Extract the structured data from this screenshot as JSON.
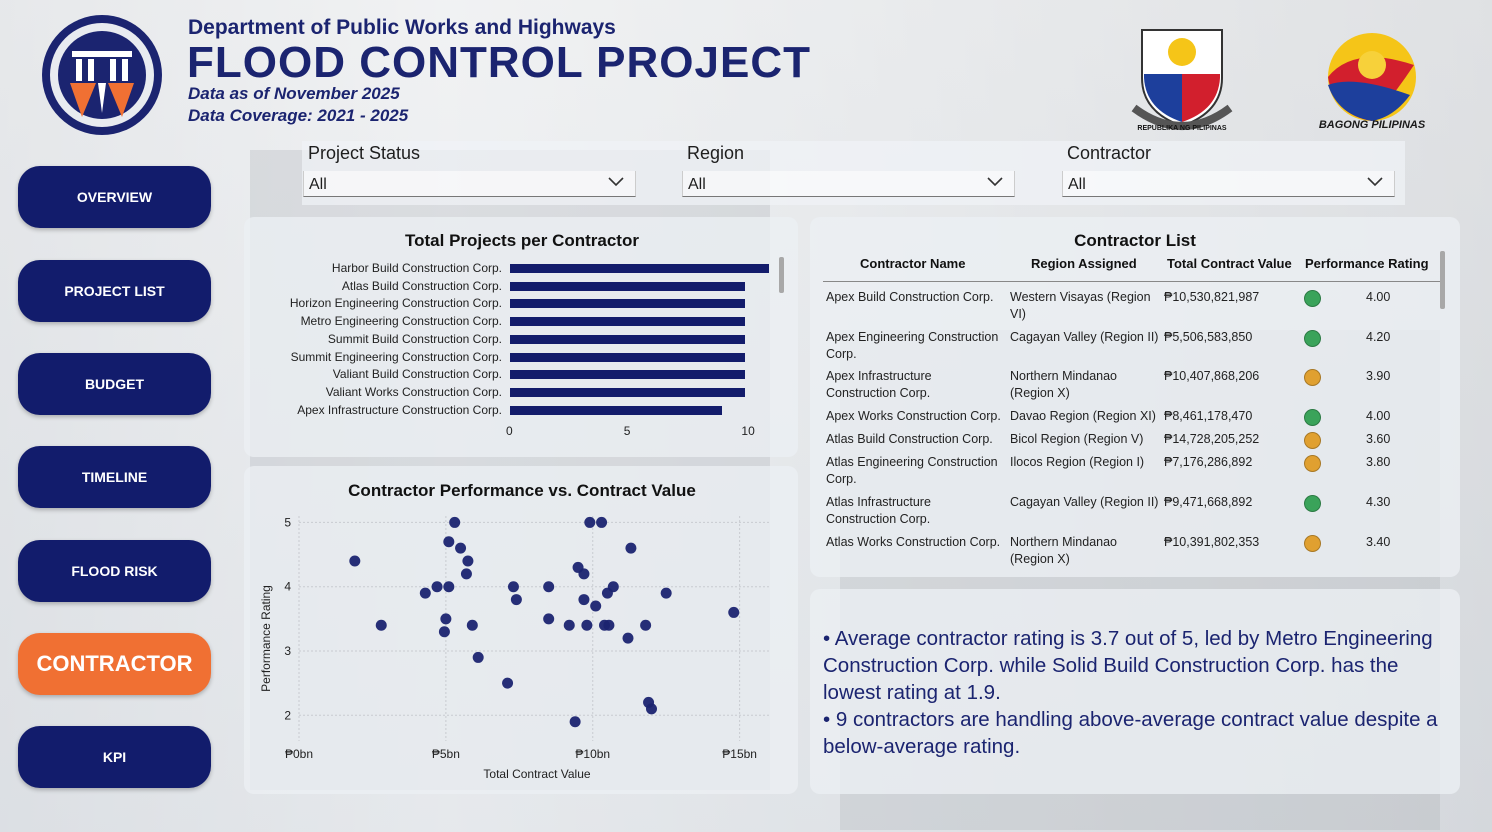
{
  "header": {
    "department": "Department of Public Works and Highways",
    "title": "FLOOD CONTROL PROJECT",
    "data_as_of": "Data as of November 2025",
    "coverage": "Data Coverage: 2021 - 2025",
    "seal_text": "REPUBLIKA NG PILIPINAS",
    "bagong_pilipinas": "BAGONG PILIPINAS"
  },
  "nav": {
    "items": [
      {
        "label": "OVERVIEW"
      },
      {
        "label": "PROJECT LIST"
      },
      {
        "label": "BUDGET"
      },
      {
        "label": "TIMELINE"
      },
      {
        "label": "FLOOD RISK"
      },
      {
        "label": "CONTRACTOR"
      },
      {
        "label": "KPI"
      }
    ],
    "active": "CONTRACTOR"
  },
  "filters": [
    {
      "label": "Project Status",
      "value": "All"
    },
    {
      "label": "Region",
      "value": "All"
    },
    {
      "label": "Contractor",
      "value": "All"
    }
  ],
  "colors": {
    "navy": "#121c6c",
    "accent": "#f07033",
    "rating_good": "#3aa35a",
    "rating_mid": "#e0a030"
  },
  "bar_chart": {
    "chart_data": {
      "type": "bar",
      "orientation": "horizontal",
      "title": "Total Projects per Contractor",
      "categories": [
        "Harbor Build Construction Corp.",
        "Atlas Build Construction Corp.",
        "Horizon Engineering Construction Corp.",
        "Metro Engineering Construction Corp.",
        "Summit Build Construction Corp.",
        "Summit Engineering Construction Corp.",
        "Valiant Build Construction Corp.",
        "Valiant Works Construction Corp.",
        "Apex Infrastructure Construction Corp."
      ],
      "values": [
        11,
        10,
        10,
        10,
        10,
        10,
        10,
        10,
        9
      ],
      "xlim": [
        0,
        11.3
      ],
      "x_ticks": [
        "0",
        "5",
        "10"
      ],
      "x_tick_values": [
        0,
        5,
        10
      ]
    }
  },
  "scatter_chart": {
    "chart_data": {
      "type": "scatter",
      "title": "Contractor Performance vs. Contract Value",
      "xlabel": "Total Contract Value",
      "ylabel": "Performance Rating",
      "xlim": [
        0,
        16
      ],
      "ylim": [
        1.6,
        5.1
      ],
      "x_ticks": [
        "₱0bn",
        "₱5bn",
        "₱10bn",
        "₱15bn"
      ],
      "x_tick_values": [
        0,
        5,
        10,
        15
      ],
      "y_ticks": [
        "2",
        "3",
        "4",
        "5"
      ],
      "y_tick_values": [
        2,
        3,
        4,
        5
      ],
      "grid": true,
      "points": [
        {
          "x": 1.9,
          "y": 4.4
        },
        {
          "x": 2.8,
          "y": 3.4
        },
        {
          "x": 4.3,
          "y": 3.9
        },
        {
          "x": 4.7,
          "y": 4.0
        },
        {
          "x": 5.0,
          "y": 3.5
        },
        {
          "x": 4.95,
          "y": 3.3
        },
        {
          "x": 5.1,
          "y": 4.0
        },
        {
          "x": 5.1,
          "y": 4.7
        },
        {
          "x": 5.3,
          "y": 5.0
        },
        {
          "x": 5.5,
          "y": 4.6
        },
        {
          "x": 5.75,
          "y": 4.4
        },
        {
          "x": 5.7,
          "y": 4.2
        },
        {
          "x": 5.9,
          "y": 3.4
        },
        {
          "x": 6.1,
          "y": 2.9
        },
        {
          "x": 7.1,
          "y": 2.5
        },
        {
          "x": 7.3,
          "y": 4.0
        },
        {
          "x": 7.4,
          "y": 3.8
        },
        {
          "x": 8.5,
          "y": 4.0
        },
        {
          "x": 8.5,
          "y": 3.5
        },
        {
          "x": 9.2,
          "y": 3.4
        },
        {
          "x": 9.4,
          "y": 1.9
        },
        {
          "x": 9.5,
          "y": 4.3
        },
        {
          "x": 9.7,
          "y": 4.2
        },
        {
          "x": 9.7,
          "y": 3.8
        },
        {
          "x": 9.8,
          "y": 3.4
        },
        {
          "x": 9.9,
          "y": 5.0
        },
        {
          "x": 10.1,
          "y": 3.7
        },
        {
          "x": 10.3,
          "y": 5.0
        },
        {
          "x": 10.4,
          "y": 3.4
        },
        {
          "x": 10.5,
          "y": 3.9
        },
        {
          "x": 10.55,
          "y": 3.4
        },
        {
          "x": 10.7,
          "y": 4.0
        },
        {
          "x": 11.2,
          "y": 3.2
        },
        {
          "x": 11.3,
          "y": 4.6
        },
        {
          "x": 11.8,
          "y": 3.4
        },
        {
          "x": 11.9,
          "y": 2.2
        },
        {
          "x": 12.0,
          "y": 2.1
        },
        {
          "x": 12.5,
          "y": 3.9
        },
        {
          "x": 14.8,
          "y": 3.6
        }
      ]
    }
  },
  "table": {
    "title": "Contractor List",
    "columns": [
      "Contractor Name",
      "Region Assigned",
      "Total Contract Value",
      "Performance Rating"
    ],
    "rows": [
      {
        "name": [
          "Apex Build Construction Corp."
        ],
        "region": [
          "Western Visayas (Region",
          "VI)"
        ],
        "value": "₱10,530,821,987",
        "rating": "4.00",
        "status": "good"
      },
      {
        "name": [
          "Apex Engineering Construction",
          "Corp."
        ],
        "region": [
          "Cagayan Valley (Region II)"
        ],
        "value": "₱5,506,583,850",
        "rating": "4.20",
        "status": "good"
      },
      {
        "name": [
          "Apex Infrastructure",
          "Construction Corp."
        ],
        "region": [
          "Northern Mindanao",
          "(Region X)"
        ],
        "value": "₱10,407,868,206",
        "rating": "3.90",
        "status": "mid"
      },
      {
        "name": [
          "Apex Works Construction Corp."
        ],
        "region": [
          "Davao Region (Region XI)"
        ],
        "value": "₱8,461,178,470",
        "rating": "4.00",
        "status": "good"
      },
      {
        "name": [
          "Atlas Build Construction Corp."
        ],
        "region": [
          "Bicol Region (Region V)"
        ],
        "value": "₱14,728,205,252",
        "rating": "3.60",
        "status": "mid"
      },
      {
        "name": [
          "Atlas Engineering Construction",
          "Corp."
        ],
        "region": [
          "Ilocos Region (Region I)"
        ],
        "value": "₱7,176,286,892",
        "rating": "3.80",
        "status": "mid"
      },
      {
        "name": [
          "Atlas Infrastructure",
          "Construction Corp."
        ],
        "region": [
          "Cagayan Valley (Region II)"
        ],
        "value": "₱9,471,668,892",
        "rating": "4.30",
        "status": "good"
      },
      {
        "name": [
          "Atlas Works Construction Corp."
        ],
        "region": [
          "Northern Mindanao",
          "(Region X)"
        ],
        "value": "₱10,391,802,353",
        "rating": "3.40",
        "status": "mid"
      }
    ]
  },
  "insights": [
    "• Average contractor rating is 3.7 out of 5, led by Metro Engineering Construction Corp. while Solid Build Construction Corp. has the lowest rating at 1.9.",
    "• 9 contractors are handling above-average contract value despite a below-average rating."
  ]
}
